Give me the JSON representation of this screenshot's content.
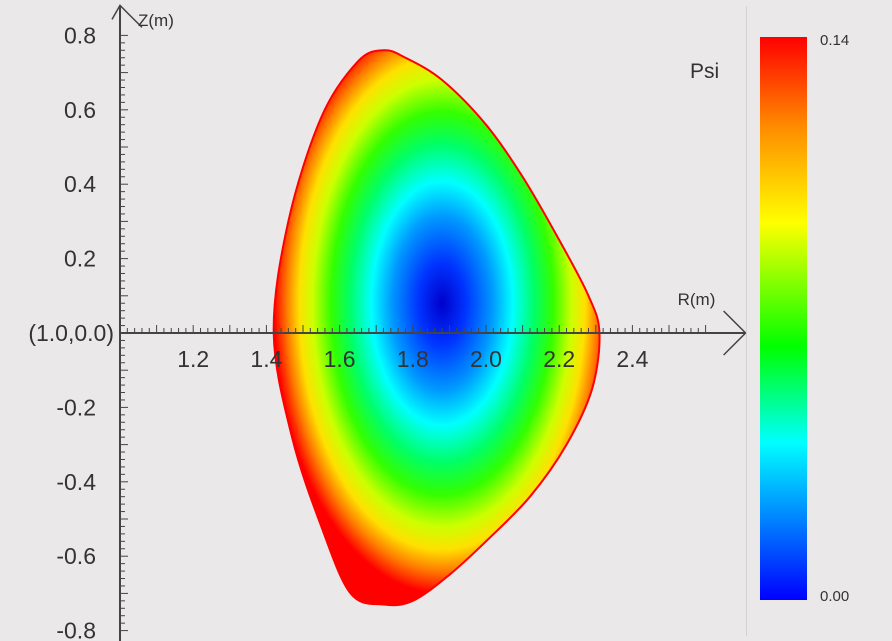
{
  "chart_data": {
    "type": "heatmap",
    "title": "Psi",
    "xlabel": "R(m)",
    "ylabel": "Z(m)",
    "origin_label": "(1.0,0.0)",
    "x_ticks": [
      "1.2",
      "1.4",
      "1.6",
      "1.8",
      "2.0",
      "2.2",
      "2.4"
    ],
    "x_tick_values": [
      1.2,
      1.4,
      1.6,
      1.8,
      2.0,
      2.2,
      2.4
    ],
    "y_ticks": [
      "0.8",
      "0.6",
      "0.4",
      "0.2",
      "-0.2",
      "-0.4",
      "-0.6",
      "-0.8"
    ],
    "y_tick_values": [
      0.8,
      0.6,
      0.4,
      0.2,
      -0.2,
      -0.4,
      -0.6,
      -0.8
    ],
    "xlim": [
      1.0,
      2.6
    ],
    "ylim": [
      -0.8,
      0.8
    ],
    "colorbar": {
      "min_label": "0.00",
      "max_label": "0.14",
      "min": 0.0,
      "max": 0.14
    },
    "colormap": [
      "#0000ff",
      "#0080ff",
      "#00ffff",
      "#00ff00",
      "#ffff00",
      "#ff8c00",
      "#ff0000"
    ],
    "magnetic_axis": {
      "R": 1.88,
      "Z": 0.08,
      "psi": 0.0
    },
    "boundary": {
      "psi": 0.14,
      "R": [
        1.42,
        1.46,
        1.55,
        1.65,
        1.72,
        1.78,
        1.88,
        2.0,
        2.1,
        2.2,
        2.28,
        2.31,
        2.29,
        2.22,
        2.12,
        2.0,
        1.9,
        1.8,
        1.72,
        1.63,
        1.55,
        1.47,
        1.42
      ],
      "Z": [
        0.0,
        0.3,
        0.58,
        0.73,
        0.76,
        0.74,
        0.68,
        0.56,
        0.42,
        0.25,
        0.1,
        0.0,
        -0.15,
        -0.3,
        -0.44,
        -0.56,
        -0.65,
        -0.72,
        -0.73,
        -0.7,
        -0.52,
        -0.28,
        0.0
      ]
    }
  }
}
